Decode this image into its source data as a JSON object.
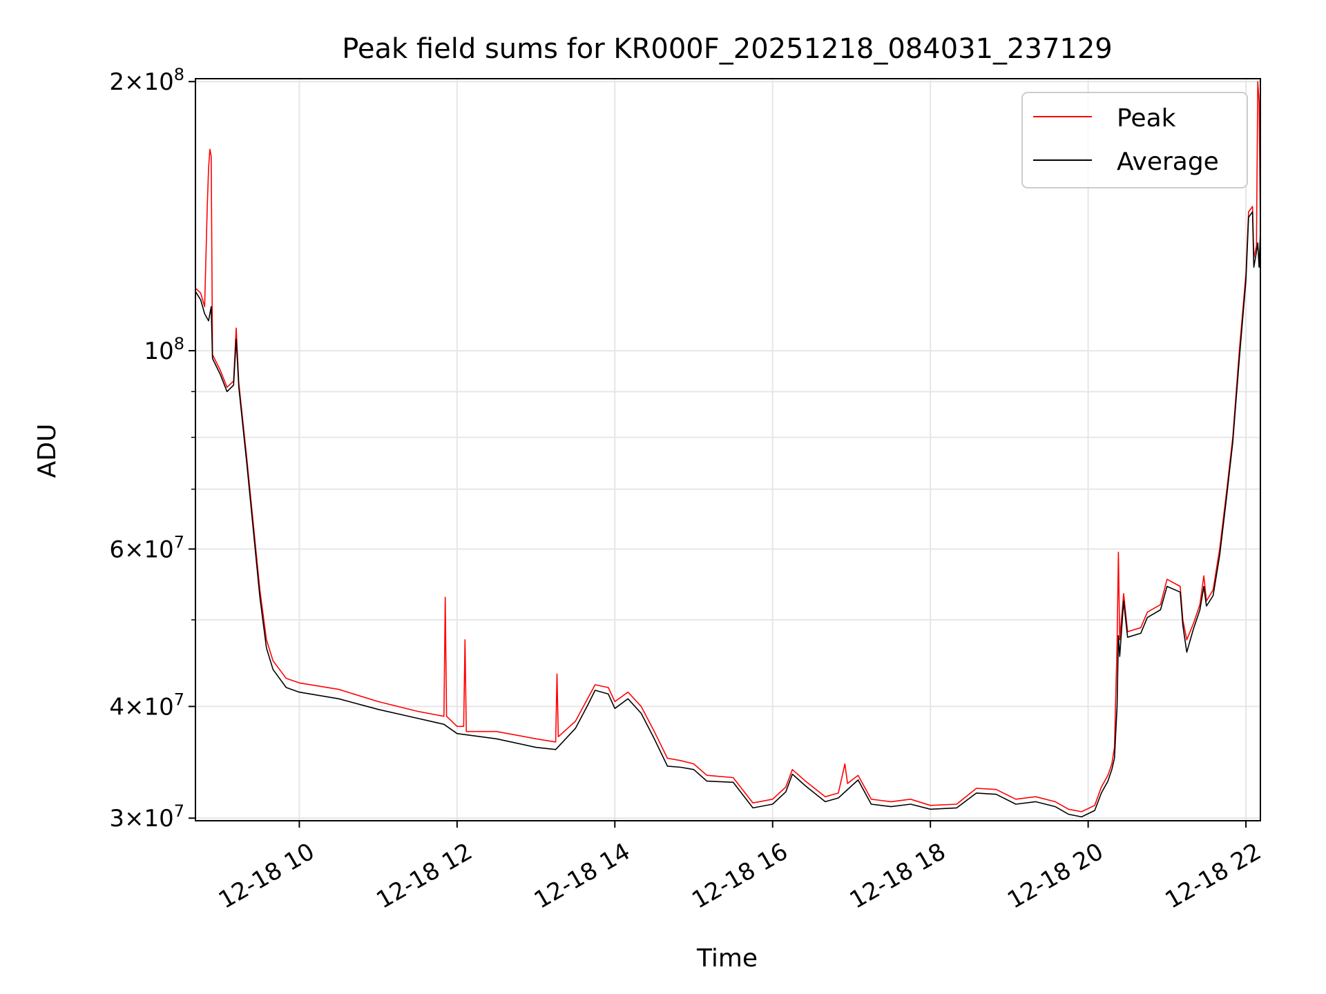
{
  "chart_data": {
    "type": "line",
    "title": "Peak field sums for KR000F_20251218_084031_237129",
    "xlabel": "Time",
    "ylabel": "ADU",
    "y_scale": "log",
    "ylim": [
      29800000,
      201500000
    ],
    "xlim": [
      "2025-12-18T08:41",
      "2025-12-18T22:11"
    ],
    "x_ticks": [
      {
        "t": "2025-12-18T10:00",
        "label": "12-18 10"
      },
      {
        "t": "2025-12-18T12:00",
        "label": "12-18 12"
      },
      {
        "t": "2025-12-18T14:00",
        "label": "12-18 14"
      },
      {
        "t": "2025-12-18T16:00",
        "label": "12-18 16"
      },
      {
        "t": "2025-12-18T18:00",
        "label": "12-18 18"
      },
      {
        "t": "2025-12-18T20:00",
        "label": "12-18 20"
      },
      {
        "t": "2025-12-18T22:00",
        "label": "12-18 22"
      }
    ],
    "y_major_ticks": [
      {
        "v": 30000000,
        "base": "3×10",
        "exp": "7"
      },
      {
        "v": 40000000,
        "base": "4×10",
        "exp": "7"
      },
      {
        "v": 60000000,
        "base": "6×10",
        "exp": "7"
      },
      {
        "v": 100000000,
        "base": "10",
        "exp": "8"
      },
      {
        "v": 200000000,
        "base": "2×10",
        "exp": "8"
      }
    ],
    "y_minor_ticks": [
      50000000,
      70000000,
      80000000,
      90000000
    ],
    "grid": true,
    "legend": {
      "placement": "top-right",
      "entries": [
        {
          "name": "Peak",
          "color": "#ff0000"
        },
        {
          "name": "Average",
          "color": "#000000"
        }
      ]
    },
    "series": [
      {
        "name": "Peak",
        "color": "#ff0000",
        "points": [
          [
            "2025-12-18T08:41",
            117500000
          ],
          [
            "2025-12-18T08:45",
            116000000
          ],
          [
            "2025-12-18T08:48",
            112000000
          ],
          [
            "2025-12-18T08:50",
            145000000
          ],
          [
            "2025-12-18T08:51",
            160000000
          ],
          [
            "2025-12-18T08:52",
            168000000
          ],
          [
            "2025-12-18T08:53",
            165000000
          ],
          [
            "2025-12-18T08:54",
            99000000
          ],
          [
            "2025-12-18T09:00",
            95000000
          ],
          [
            "2025-12-18T09:05",
            91000000
          ],
          [
            "2025-12-18T09:10",
            92500000
          ],
          [
            "2025-12-18T09:12",
            106000000
          ],
          [
            "2025-12-18T09:14",
            92000000
          ],
          [
            "2025-12-18T09:20",
            76000000
          ],
          [
            "2025-12-18T09:25",
            64000000
          ],
          [
            "2025-12-18T09:30",
            54000000
          ],
          [
            "2025-12-18T09:35",
            47500000
          ],
          [
            "2025-12-18T09:40",
            45000000
          ],
          [
            "2025-12-18T09:50",
            43000000
          ],
          [
            "2025-12-18T10:00",
            42500000
          ],
          [
            "2025-12-18T10:30",
            41800000
          ],
          [
            "2025-12-18T11:00",
            40500000
          ],
          [
            "2025-12-18T11:30",
            39500000
          ],
          [
            "2025-12-18T11:50",
            39000000
          ],
          [
            "2025-12-18T11:51",
            53000000
          ],
          [
            "2025-12-18T11:52",
            39000000
          ],
          [
            "2025-12-18T12:00",
            38000000
          ],
          [
            "2025-12-18T12:05",
            38000000
          ],
          [
            "2025-12-18T12:06",
            47500000
          ],
          [
            "2025-12-18T12:07",
            37500000
          ],
          [
            "2025-12-18T12:30",
            37500000
          ],
          [
            "2025-12-18T13:00",
            36800000
          ],
          [
            "2025-12-18T13:15",
            36500000
          ],
          [
            "2025-12-18T13:16",
            43500000
          ],
          [
            "2025-12-18T13:17",
            37000000
          ],
          [
            "2025-12-18T13:30",
            38500000
          ],
          [
            "2025-12-18T13:40",
            41000000
          ],
          [
            "2025-12-18T13:45",
            42300000
          ],
          [
            "2025-12-18T13:55",
            42000000
          ],
          [
            "2025-12-18T14:00",
            40500000
          ],
          [
            "2025-12-18T14:10",
            41500000
          ],
          [
            "2025-12-18T14:20",
            40000000
          ],
          [
            "2025-12-18T14:30",
            37500000
          ],
          [
            "2025-12-18T14:40",
            35000000
          ],
          [
            "2025-12-18T14:50",
            34800000
          ],
          [
            "2025-12-18T15:00",
            34500000
          ],
          [
            "2025-12-18T15:10",
            33500000
          ],
          [
            "2025-12-18T15:30",
            33300000
          ],
          [
            "2025-12-18T15:45",
            31200000
          ],
          [
            "2025-12-18T16:00",
            31500000
          ],
          [
            "2025-12-18T16:10",
            32500000
          ],
          [
            "2025-12-18T16:15",
            34000000
          ],
          [
            "2025-12-18T16:25",
            33000000
          ],
          [
            "2025-12-18T16:40",
            31700000
          ],
          [
            "2025-12-18T16:50",
            32000000
          ],
          [
            "2025-12-18T16:55",
            34500000
          ],
          [
            "2025-12-18T16:57",
            32800000
          ],
          [
            "2025-12-18T17:05",
            33500000
          ],
          [
            "2025-12-18T17:15",
            31500000
          ],
          [
            "2025-12-18T17:30",
            31300000
          ],
          [
            "2025-12-18T17:45",
            31500000
          ],
          [
            "2025-12-18T18:00",
            31000000
          ],
          [
            "2025-12-18T18:20",
            31100000
          ],
          [
            "2025-12-18T18:35",
            32400000
          ],
          [
            "2025-12-18T18:50",
            32300000
          ],
          [
            "2025-12-18T19:05",
            31500000
          ],
          [
            "2025-12-18T19:20",
            31700000
          ],
          [
            "2025-12-18T19:35",
            31300000
          ],
          [
            "2025-12-18T19:45",
            30700000
          ],
          [
            "2025-12-18T19:55",
            30500000
          ],
          [
            "2025-12-18T20:05",
            31000000
          ],
          [
            "2025-12-18T20:10",
            32500000
          ],
          [
            "2025-12-18T20:15",
            33500000
          ],
          [
            "2025-12-18T20:18",
            34500000
          ],
          [
            "2025-12-18T20:20",
            36000000
          ],
          [
            "2025-12-18T20:22",
            47000000
          ],
          [
            "2025-12-18T20:23",
            59500000
          ],
          [
            "2025-12-18T20:24",
            47500000
          ],
          [
            "2025-12-18T20:27",
            53500000
          ],
          [
            "2025-12-18T20:30",
            48500000
          ],
          [
            "2025-12-18T20:40",
            49000000
          ],
          [
            "2025-12-18T20:45",
            51000000
          ],
          [
            "2025-12-18T20:55",
            52000000
          ],
          [
            "2025-12-18T21:00",
            55500000
          ],
          [
            "2025-12-18T21:10",
            54500000
          ],
          [
            "2025-12-18T21:12",
            50000000
          ],
          [
            "2025-12-18T21:15",
            47500000
          ],
          [
            "2025-12-18T21:20",
            49500000
          ],
          [
            "2025-12-18T21:25",
            52000000
          ],
          [
            "2025-12-18T21:28",
            56000000
          ],
          [
            "2025-12-18T21:30",
            52500000
          ],
          [
            "2025-12-18T21:35",
            54000000
          ],
          [
            "2025-12-18T21:40",
            60000000
          ],
          [
            "2025-12-18T21:45",
            69000000
          ],
          [
            "2025-12-18T21:50",
            80000000
          ],
          [
            "2025-12-18T21:55",
            100000000
          ],
          [
            "2025-12-18T22:00",
            122000000
          ],
          [
            "2025-12-18T22:02",
            143000000
          ],
          [
            "2025-12-18T22:05",
            145000000
          ],
          [
            "2025-12-18T22:06",
            127000000
          ],
          [
            "2025-12-18T22:08",
            131000000
          ],
          [
            "2025-12-18T22:09",
            200000000
          ],
          [
            "2025-12-18T22:10",
            190000000
          ],
          [
            "2025-12-18T22:11",
            138000000
          ]
        ]
      },
      {
        "name": "Average",
        "color": "#000000",
        "points": [
          [
            "2025-12-18T08:41",
            116500000
          ],
          [
            "2025-12-18T08:45",
            114000000
          ],
          [
            "2025-12-18T08:48",
            110000000
          ],
          [
            "2025-12-18T08:51",
            108000000
          ],
          [
            "2025-12-18T08:53",
            112000000
          ],
          [
            "2025-12-18T08:54",
            98000000
          ],
          [
            "2025-12-18T09:00",
            94000000
          ],
          [
            "2025-12-18T09:05",
            90000000
          ],
          [
            "2025-12-18T09:10",
            91500000
          ],
          [
            "2025-12-18T09:12",
            103000000
          ],
          [
            "2025-12-18T09:14",
            91000000
          ],
          [
            "2025-12-18T09:20",
            75000000
          ],
          [
            "2025-12-18T09:25",
            63000000
          ],
          [
            "2025-12-18T09:30",
            53000000
          ],
          [
            "2025-12-18T09:35",
            46500000
          ],
          [
            "2025-12-18T09:40",
            44000000
          ],
          [
            "2025-12-18T09:50",
            42000000
          ],
          [
            "2025-12-18T10:00",
            41500000
          ],
          [
            "2025-12-18T10:30",
            40800000
          ],
          [
            "2025-12-18T11:00",
            39700000
          ],
          [
            "2025-12-18T11:30",
            38800000
          ],
          [
            "2025-12-18T11:50",
            38200000
          ],
          [
            "2025-12-18T12:00",
            37300000
          ],
          [
            "2025-12-18T12:30",
            36800000
          ],
          [
            "2025-12-18T13:00",
            36000000
          ],
          [
            "2025-12-18T13:15",
            35800000
          ],
          [
            "2025-12-18T13:30",
            37800000
          ],
          [
            "2025-12-18T13:40",
            40300000
          ],
          [
            "2025-12-18T13:45",
            41700000
          ],
          [
            "2025-12-18T13:55",
            41300000
          ],
          [
            "2025-12-18T14:00",
            39800000
          ],
          [
            "2025-12-18T14:10",
            40800000
          ],
          [
            "2025-12-18T14:20",
            39300000
          ],
          [
            "2025-12-18T14:30",
            36800000
          ],
          [
            "2025-12-18T14:40",
            34300000
          ],
          [
            "2025-12-18T14:50",
            34200000
          ],
          [
            "2025-12-18T15:00",
            34000000
          ],
          [
            "2025-12-18T15:10",
            33000000
          ],
          [
            "2025-12-18T15:30",
            32900000
          ],
          [
            "2025-12-18T15:45",
            30800000
          ],
          [
            "2025-12-18T16:00",
            31100000
          ],
          [
            "2025-12-18T16:10",
            32100000
          ],
          [
            "2025-12-18T16:15",
            33600000
          ],
          [
            "2025-12-18T16:25",
            32600000
          ],
          [
            "2025-12-18T16:40",
            31300000
          ],
          [
            "2025-12-18T16:50",
            31600000
          ],
          [
            "2025-12-18T17:05",
            33100000
          ],
          [
            "2025-12-18T17:15",
            31100000
          ],
          [
            "2025-12-18T17:30",
            30900000
          ],
          [
            "2025-12-18T17:45",
            31100000
          ],
          [
            "2025-12-18T18:00",
            30700000
          ],
          [
            "2025-12-18T18:20",
            30800000
          ],
          [
            "2025-12-18T18:35",
            32000000
          ],
          [
            "2025-12-18T18:50",
            31900000
          ],
          [
            "2025-12-18T19:05",
            31100000
          ],
          [
            "2025-12-18T19:20",
            31300000
          ],
          [
            "2025-12-18T19:35",
            30900000
          ],
          [
            "2025-12-18T19:45",
            30300000
          ],
          [
            "2025-12-18T19:55",
            30100000
          ],
          [
            "2025-12-18T20:05",
            30600000
          ],
          [
            "2025-12-18T20:10",
            32000000
          ],
          [
            "2025-12-18T20:15",
            33000000
          ],
          [
            "2025-12-18T20:18",
            34000000
          ],
          [
            "2025-12-18T20:20",
            35000000
          ],
          [
            "2025-12-18T20:22",
            40000000
          ],
          [
            "2025-12-18T20:23",
            48000000
          ],
          [
            "2025-12-18T20:24",
            45500000
          ],
          [
            "2025-12-18T20:27",
            52500000
          ],
          [
            "2025-12-18T20:30",
            47800000
          ],
          [
            "2025-12-18T20:40",
            48300000
          ],
          [
            "2025-12-18T20:45",
            50300000
          ],
          [
            "2025-12-18T20:55",
            51300000
          ],
          [
            "2025-12-18T21:00",
            54500000
          ],
          [
            "2025-12-18T21:10",
            53700000
          ],
          [
            "2025-12-18T21:12",
            49300000
          ],
          [
            "2025-12-18T21:15",
            46000000
          ],
          [
            "2025-12-18T21:20",
            48800000
          ],
          [
            "2025-12-18T21:25",
            51300000
          ],
          [
            "2025-12-18T21:28",
            54500000
          ],
          [
            "2025-12-18T21:30",
            51800000
          ],
          [
            "2025-12-18T21:35",
            53200000
          ],
          [
            "2025-12-18T21:40",
            59000000
          ],
          [
            "2025-12-18T21:45",
            68000000
          ],
          [
            "2025-12-18T21:50",
            79000000
          ],
          [
            "2025-12-18T21:55",
            98000000
          ],
          [
            "2025-12-18T22:00",
            120000000
          ],
          [
            "2025-12-18T22:02",
            141000000
          ],
          [
            "2025-12-18T22:05",
            143000000
          ],
          [
            "2025-12-18T22:06",
            124000000
          ],
          [
            "2025-12-18T22:08",
            129000000
          ],
          [
            "2025-12-18T22:09",
            132000000
          ],
          [
            "2025-12-18T22:10",
            124000000
          ],
          [
            "2025-12-18T22:11",
            136000000
          ]
        ]
      }
    ]
  }
}
